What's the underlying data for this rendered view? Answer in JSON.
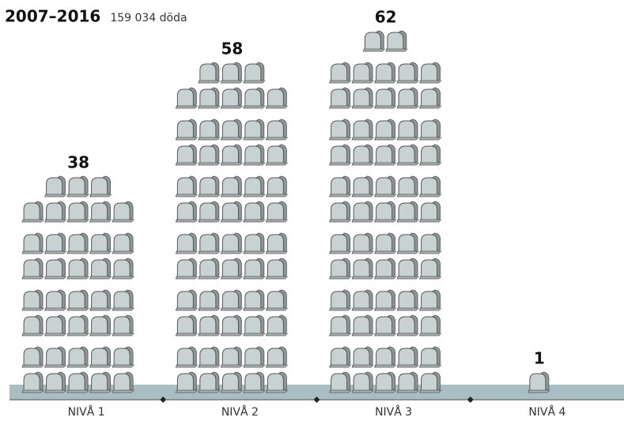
{
  "chart_data": {
    "type": "pictogram",
    "title": "2007–2016",
    "subtitle": "159 034 döda",
    "categories": [
      "NIVÅ 1",
      "NIVÅ 2",
      "NIVÅ 3",
      "NIVÅ 4"
    ],
    "values": [
      38,
      58,
      62,
      1
    ],
    "color": "#c9d2d2",
    "ground_color": "#a9bec3"
  }
}
